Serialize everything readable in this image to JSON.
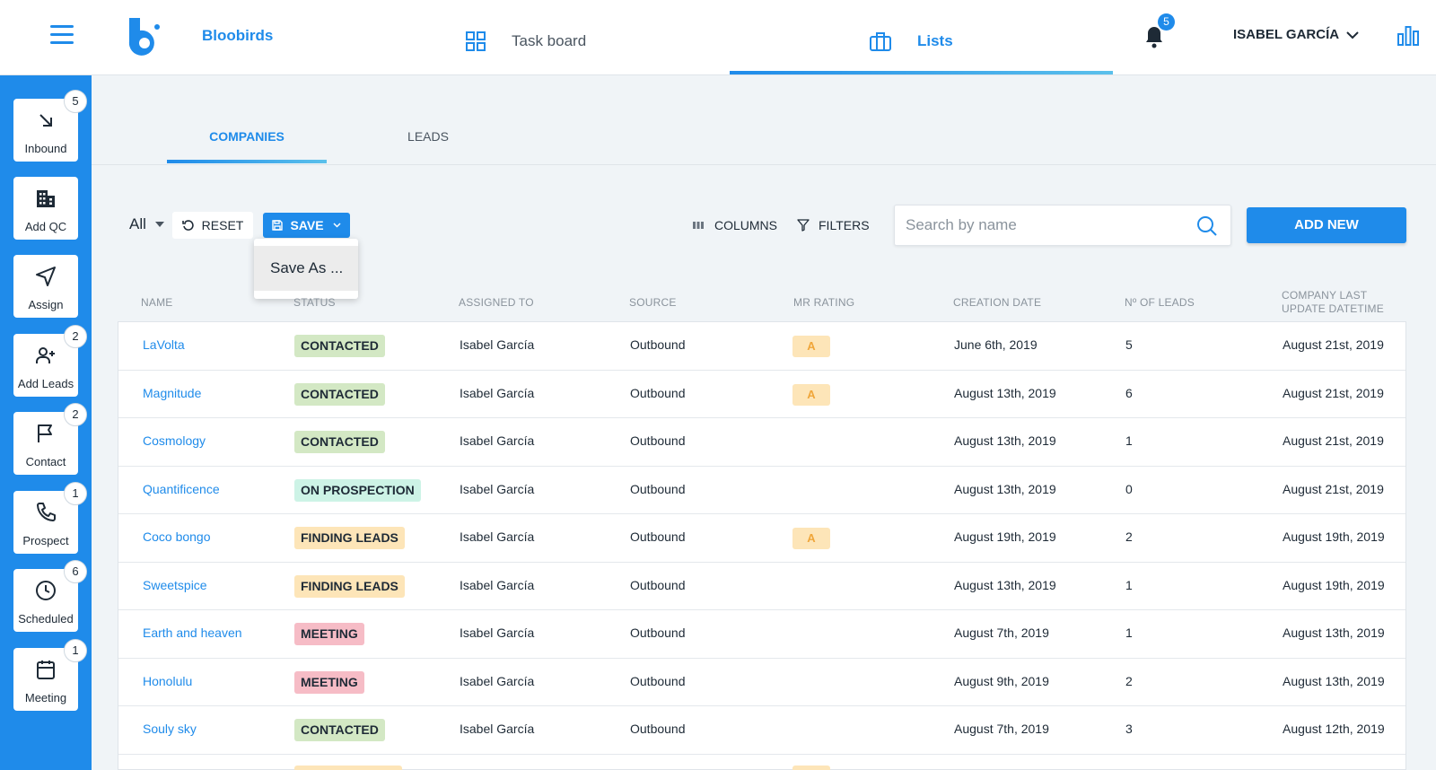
{
  "header": {
    "brand": "Bloobirds",
    "nav_taskboard": "Task board",
    "nav_lists": "Lists",
    "notifications_count": "5",
    "user_name": "ISABEL GARCÍA"
  },
  "sidebar": {
    "items": [
      {
        "label": "Inbound",
        "badge": "5",
        "icon": "arrow-down-right-icon"
      },
      {
        "label": "Add QC",
        "badge": "",
        "icon": "building-icon"
      },
      {
        "label": "Assign",
        "badge": "",
        "icon": "send-icon"
      },
      {
        "label": "Add Leads",
        "badge": "2",
        "icon": "user-plus-icon"
      },
      {
        "label": "Contact",
        "badge": "2",
        "icon": "flag-icon"
      },
      {
        "label": "Prospect",
        "badge": "1",
        "icon": "phone-icon"
      },
      {
        "label": "Scheduled",
        "badge": "6",
        "icon": "clock-icon"
      },
      {
        "label": "Meeting",
        "badge": "1",
        "icon": "calendar-icon"
      }
    ]
  },
  "tabs": {
    "companies": "COMPANIES",
    "leads": "LEADS"
  },
  "toolbar": {
    "filter_value": "All",
    "reset_label": "RESET",
    "save_label": "SAVE",
    "save_menu_option": "Save As ...",
    "columns_label": "COLUMNS",
    "filters_label": "FILTERS",
    "search_placeholder": "Search by name",
    "add_new_label": "ADD NEW"
  },
  "table": {
    "columns": [
      "NAME",
      "STATUS",
      "ASSIGNED TO",
      "SOURCE",
      "MR RATING",
      "CREATION DATE",
      "Nº OF LEADS",
      "COMPANY LAST",
      "UPDATE DATETIME"
    ],
    "rows": [
      {
        "name": "LaVolta",
        "status": "CONTACTED",
        "assigned": "Isabel García",
        "source": "Outbound",
        "rating": "A",
        "created": "June 6th, 2019",
        "leads": "5",
        "updated": "August 21st, 2019"
      },
      {
        "name": "Magnitude",
        "status": "CONTACTED",
        "assigned": "Isabel García",
        "source": "Outbound",
        "rating": "A",
        "created": "August 13th, 2019",
        "leads": "6",
        "updated": "August 21st, 2019"
      },
      {
        "name": "Cosmology",
        "status": "CONTACTED",
        "assigned": "Isabel García",
        "source": "Outbound",
        "rating": "",
        "created": "August 13th, 2019",
        "leads": "1",
        "updated": "August 21st, 2019"
      },
      {
        "name": "Quantificence",
        "status": "ON PROSPECTION",
        "assigned": "Isabel García",
        "source": "Outbound",
        "rating": "",
        "created": "August 13th, 2019",
        "leads": "0",
        "updated": "August 21st, 2019"
      },
      {
        "name": "Coco bongo",
        "status": "FINDING LEADS",
        "assigned": "Isabel García",
        "source": "Outbound",
        "rating": "A",
        "created": "August 19th, 2019",
        "leads": "2",
        "updated": "August 19th, 2019"
      },
      {
        "name": "Sweetspice",
        "status": "FINDING LEADS",
        "assigned": "Isabel García",
        "source": "Outbound",
        "rating": "",
        "created": "August 13th, 2019",
        "leads": "1",
        "updated": "August 19th, 2019"
      },
      {
        "name": "Earth and heaven",
        "status": "MEETING",
        "assigned": "Isabel García",
        "source": "Outbound",
        "rating": "",
        "created": "August 7th, 2019",
        "leads": "1",
        "updated": "August 13th, 2019"
      },
      {
        "name": "Honolulu",
        "status": "MEETING",
        "assigned": "Isabel García",
        "source": "Outbound",
        "rating": "",
        "created": "August 9th, 2019",
        "leads": "2",
        "updated": "August 13th, 2019"
      },
      {
        "name": "Souly sky",
        "status": "CONTACTED",
        "assigned": "Isabel García",
        "source": "Outbound",
        "rating": "",
        "created": "August 7th, 2019",
        "leads": "3",
        "updated": "August 12th, 2019"
      }
    ]
  },
  "colors": {
    "accent": "#1f8bea",
    "status_contacted": "#d3e8c4",
    "status_on_prospection": "#cdf3e6",
    "status_finding_leads": "#fde5b8",
    "status_meeting": "#f6bcc6",
    "rating_bg": "#fde5b8"
  }
}
